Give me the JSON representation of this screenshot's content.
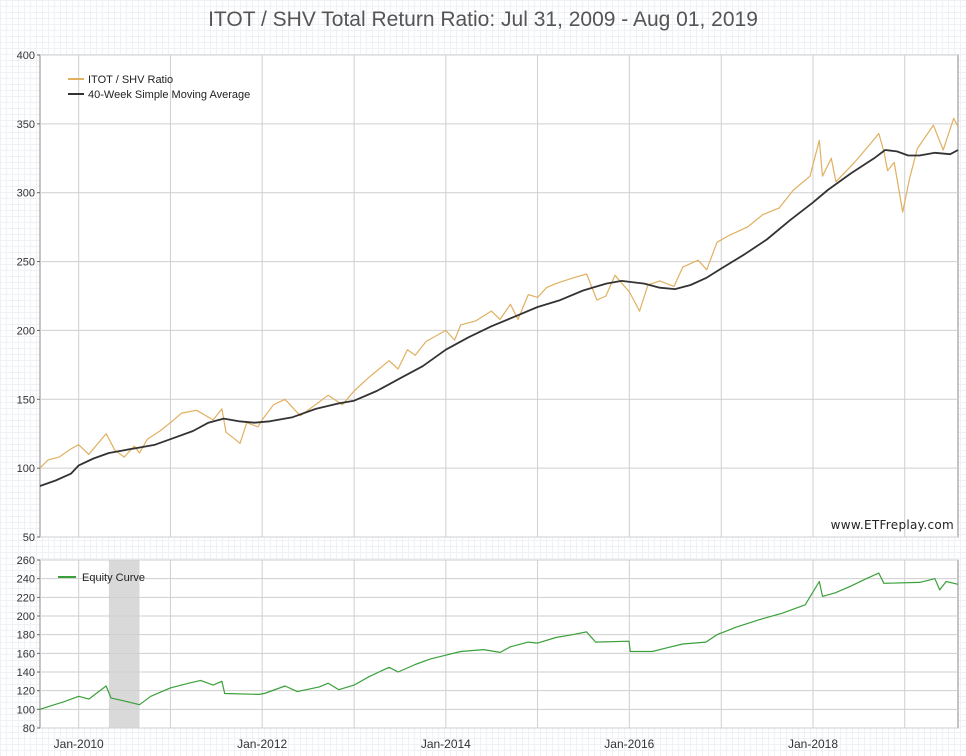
{
  "page_title": "ITOT / SHV Total Return Ratio: Jul 31, 2009 - Aug 01, 2019",
  "watermark": "www.ETFreplay.com",
  "colors": {
    "ratio": "#e0b060",
    "sma": "#333333",
    "equity": "#3aa03a",
    "shade": "#d9d9d9",
    "grid": "#cfcfcf"
  },
  "chart_data": [
    {
      "type": "line",
      "title": "ITOT / SHV Total Return Ratio: Jul 31, 2009 - Aug 01, 2019",
      "ylim": [
        50,
        400
      ],
      "yticks": [
        50,
        100,
        150,
        200,
        250,
        300,
        350,
        400
      ],
      "xlim": [
        "2009-07-31",
        "2019-08-01"
      ],
      "xticks": [
        "2010-01-01",
        "2011-01-01",
        "2012-01-01",
        "2013-01-01",
        "2014-01-01",
        "2015-01-01",
        "2016-01-01",
        "2017-01-01",
        "2018-01-01",
        "2019-01-01"
      ],
      "legend_position": "top-left",
      "grid": true,
      "series": [
        {
          "name": "ITOT / SHV Ratio",
          "color": "#e0b060",
          "points": [
            [
              "2009-07-31",
              100
            ],
            [
              "2009-09-01",
              106
            ],
            [
              "2009-10-15",
              108
            ],
            [
              "2009-12-01",
              114
            ],
            [
              "2010-01-01",
              117
            ],
            [
              "2010-02-10",
              110
            ],
            [
              "2010-04-20",
              125
            ],
            [
              "2010-05-25",
              113
            ],
            [
              "2010-07-01",
              108
            ],
            [
              "2010-08-10",
              116
            ],
            [
              "2010-08-31",
              111
            ],
            [
              "2010-10-01",
              121
            ],
            [
              "2010-11-20",
              127
            ],
            [
              "2011-01-01",
              133
            ],
            [
              "2011-02-15",
              140
            ],
            [
              "2011-04-15",
              142
            ],
            [
              "2011-06-20",
              135
            ],
            [
              "2011-07-25",
              143
            ],
            [
              "2011-08-10",
              126
            ],
            [
              "2011-09-15",
              121
            ],
            [
              "2011-10-05",
              118
            ],
            [
              "2011-11-01",
              133
            ],
            [
              "2011-12-15",
              130
            ],
            [
              "2012-01-01",
              135
            ],
            [
              "2012-02-15",
              146
            ],
            [
              "2012-04-01",
              150
            ],
            [
              "2012-06-01",
              138
            ],
            [
              "2012-08-15",
              148
            ],
            [
              "2012-09-20",
              153
            ],
            [
              "2012-11-15",
              146
            ],
            [
              "2013-01-01",
              156
            ],
            [
              "2013-03-01",
              166
            ],
            [
              "2013-05-20",
              178
            ],
            [
              "2013-06-25",
              172
            ],
            [
              "2013-08-01",
              186
            ],
            [
              "2013-09-01",
              182
            ],
            [
              "2013-10-15",
              192
            ],
            [
              "2014-01-01",
              200
            ],
            [
              "2014-02-05",
              193
            ],
            [
              "2014-03-01",
              204
            ],
            [
              "2014-05-01",
              207
            ],
            [
              "2014-07-01",
              214
            ],
            [
              "2014-08-05",
              208
            ],
            [
              "2014-09-15",
              219
            ],
            [
              "2014-10-15",
              208
            ],
            [
              "2014-11-25",
              226
            ],
            [
              "2015-01-01",
              224
            ],
            [
              "2015-02-05",
              231
            ],
            [
              "2015-03-15",
              234
            ],
            [
              "2015-05-20",
              238
            ],
            [
              "2015-07-15",
              241
            ],
            [
              "2015-08-25",
              222
            ],
            [
              "2015-09-30",
              225
            ],
            [
              "2015-11-05",
              240
            ],
            [
              "2016-01-01",
              228
            ],
            [
              "2016-02-11",
              214
            ],
            [
              "2016-03-15",
              233
            ],
            [
              "2016-05-01",
              236
            ],
            [
              "2016-06-27",
              232
            ],
            [
              "2016-08-01",
              246
            ],
            [
              "2016-10-01",
              251
            ],
            [
              "2016-11-04",
              244
            ],
            [
              "2016-12-15",
              264
            ],
            [
              "2017-02-01",
              269
            ],
            [
              "2017-04-15",
              275
            ],
            [
              "2017-06-15",
              284
            ],
            [
              "2017-08-20",
              289
            ],
            [
              "2017-10-15",
              302
            ],
            [
              "2017-12-20",
              312
            ],
            [
              "2018-01-26",
              338
            ],
            [
              "2018-02-08",
              312
            ],
            [
              "2018-03-15",
              325
            ],
            [
              "2018-04-02",
              308
            ],
            [
              "2018-06-15",
              322
            ],
            [
              "2018-08-15",
              335
            ],
            [
              "2018-09-20",
              343
            ],
            [
              "2018-10-10",
              330
            ],
            [
              "2018-10-25",
              316
            ],
            [
              "2018-11-20",
              322
            ],
            [
              "2018-12-24",
              286
            ],
            [
              "2019-01-20",
              310
            ],
            [
              "2019-02-20",
              332
            ],
            [
              "2019-04-25",
              349
            ],
            [
              "2019-06-03",
              331
            ],
            [
              "2019-07-15",
              354
            ],
            [
              "2019-08-01",
              348
            ]
          ]
        },
        {
          "name": "40-Week Simple Moving Average",
          "color": "#333333",
          "points": [
            [
              "2009-07-31",
              87
            ],
            [
              "2009-10-01",
              91
            ],
            [
              "2009-12-01",
              96
            ],
            [
              "2010-01-01",
              102
            ],
            [
              "2010-03-01",
              107
            ],
            [
              "2010-05-01",
              111
            ],
            [
              "2010-07-01",
              113
            ],
            [
              "2010-09-01",
              115
            ],
            [
              "2010-11-01",
              117
            ],
            [
              "2011-01-01",
              121
            ],
            [
              "2011-04-01",
              127
            ],
            [
              "2011-06-01",
              133
            ],
            [
              "2011-08-01",
              136
            ],
            [
              "2011-10-01",
              134
            ],
            [
              "2011-12-01",
              133
            ],
            [
              "2012-02-01",
              134
            ],
            [
              "2012-05-01",
              137
            ],
            [
              "2012-08-01",
              143
            ],
            [
              "2012-11-01",
              147
            ],
            [
              "2013-01-01",
              149
            ],
            [
              "2013-04-01",
              156
            ],
            [
              "2013-07-01",
              165
            ],
            [
              "2013-10-01",
              174
            ],
            [
              "2014-01-01",
              186
            ],
            [
              "2014-04-01",
              195
            ],
            [
              "2014-07-01",
              203
            ],
            [
              "2014-10-01",
              210
            ],
            [
              "2015-01-01",
              217
            ],
            [
              "2015-04-01",
              222
            ],
            [
              "2015-07-01",
              229
            ],
            [
              "2015-10-01",
              234
            ],
            [
              "2015-12-01",
              236
            ],
            [
              "2016-03-01",
              234
            ],
            [
              "2016-05-01",
              231
            ],
            [
              "2016-07-01",
              230
            ],
            [
              "2016-09-01",
              233
            ],
            [
              "2016-11-01",
              238
            ],
            [
              "2017-01-01",
              245
            ],
            [
              "2017-04-01",
              255
            ],
            [
              "2017-07-01",
              266
            ],
            [
              "2017-10-01",
              280
            ],
            [
              "2018-01-01",
              293
            ],
            [
              "2018-03-01",
              302
            ],
            [
              "2018-06-01",
              314
            ],
            [
              "2018-09-01",
              325
            ],
            [
              "2018-10-15",
              331
            ],
            [
              "2018-12-01",
              330
            ],
            [
              "2019-01-15",
              327
            ],
            [
              "2019-03-01",
              327
            ],
            [
              "2019-05-01",
              329
            ],
            [
              "2019-07-01",
              328
            ],
            [
              "2019-08-01",
              331
            ]
          ]
        }
      ]
    },
    {
      "type": "line",
      "ylim": [
        80,
        260
      ],
      "yticks": [
        80,
        100,
        120,
        140,
        160,
        180,
        200,
        220,
        240,
        260
      ],
      "xlim": [
        "2009-07-31",
        "2019-08-01"
      ],
      "xtick_labels": [
        "Jan-2010",
        "Jan-2012",
        "Jan-2014",
        "Jan-2016",
        "Jan-2018"
      ],
      "xtick_label_dates": [
        "2010-01-01",
        "2012-01-01",
        "2014-01-01",
        "2016-01-01",
        "2018-01-01"
      ],
      "legend_position": "top-left",
      "grid": true,
      "shaded_regions": [
        [
          "2010-05-01",
          "2010-08-31"
        ]
      ],
      "series": [
        {
          "name": "Equity Curve",
          "color": "#3aa03a",
          "points": [
            [
              "2009-07-31",
              100
            ],
            [
              "2009-09-15",
              104
            ],
            [
              "2009-11-01",
              108
            ],
            [
              "2010-01-01",
              114
            ],
            [
              "2010-02-10",
              111
            ],
            [
              "2010-04-20",
              125
            ],
            [
              "2010-05-10",
              112
            ],
            [
              "2010-07-01",
              109
            ],
            [
              "2010-08-31",
              105
            ],
            [
              "2010-10-15",
              114
            ],
            [
              "2011-01-01",
              123
            ],
            [
              "2011-03-15",
              128
            ],
            [
              "2011-05-01",
              131
            ],
            [
              "2011-06-20",
              126
            ],
            [
              "2011-07-25",
              130
            ],
            [
              "2011-08-05",
              117
            ],
            [
              "2011-12-20",
              116
            ],
            [
              "2012-01-10",
              117
            ],
            [
              "2012-04-01",
              125
            ],
            [
              "2012-05-20",
              119
            ],
            [
              "2012-08-15",
              124
            ],
            [
              "2012-09-20",
              128
            ],
            [
              "2012-11-01",
              121
            ],
            [
              "2013-01-01",
              126
            ],
            [
              "2013-03-01",
              135
            ],
            [
              "2013-05-20",
              145
            ],
            [
              "2013-06-25",
              140
            ],
            [
              "2013-09-01",
              148
            ],
            [
              "2013-11-01",
              154
            ],
            [
              "2014-01-01",
              158
            ],
            [
              "2014-03-01",
              162
            ],
            [
              "2014-06-01",
              164
            ],
            [
              "2014-08-05",
              161
            ],
            [
              "2014-09-15",
              167
            ],
            [
              "2014-11-25",
              172
            ],
            [
              "2015-01-01",
              171
            ],
            [
              "2015-03-15",
              177
            ],
            [
              "2015-05-20",
              180
            ],
            [
              "2015-07-15",
              183
            ],
            [
              "2015-08-20",
              172
            ],
            [
              "2015-12-31",
              173
            ],
            [
              "2016-01-05",
              162
            ],
            [
              "2016-04-01",
              162
            ],
            [
              "2016-06-01",
              166
            ],
            [
              "2016-08-01",
              170
            ],
            [
              "2016-11-01",
              172
            ],
            [
              "2016-12-15",
              180
            ],
            [
              "2017-03-01",
              188
            ],
            [
              "2017-06-01",
              196
            ],
            [
              "2017-09-01",
              203
            ],
            [
              "2017-12-01",
              212
            ],
            [
              "2018-01-26",
              237
            ],
            [
              "2018-02-08",
              221
            ],
            [
              "2018-04-01",
              225
            ],
            [
              "2018-06-01",
              232
            ],
            [
              "2018-08-01",
              240
            ],
            [
              "2018-09-20",
              246
            ],
            [
              "2018-10-10",
              235
            ],
            [
              "2019-03-01",
              236
            ],
            [
              "2019-05-01",
              240
            ],
            [
              "2019-05-20",
              228
            ],
            [
              "2019-06-15",
              237
            ],
            [
              "2019-08-01",
              234
            ]
          ]
        }
      ]
    }
  ]
}
